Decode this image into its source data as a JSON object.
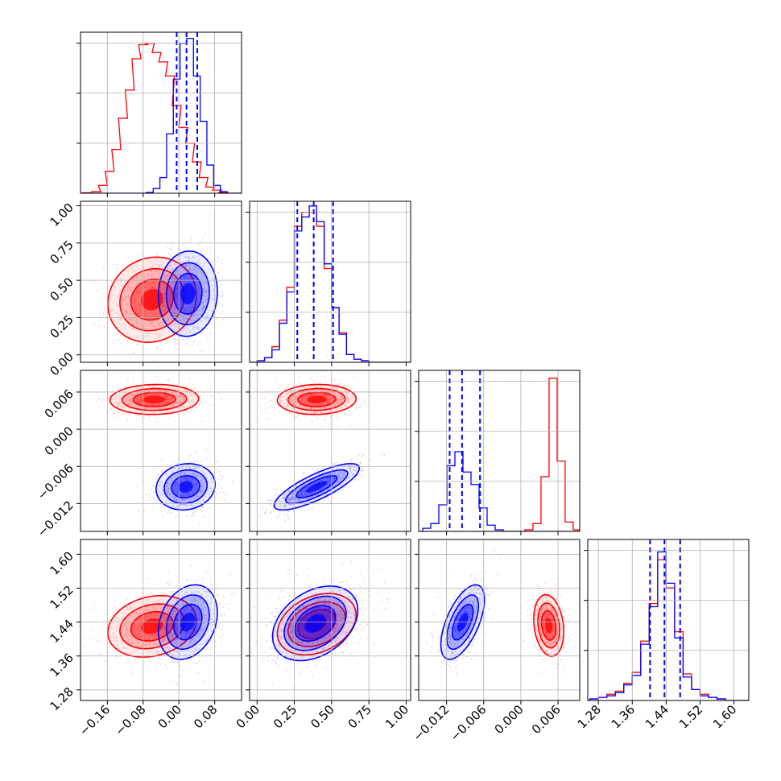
{
  "chart_data": {
    "type": "corner",
    "grid": true,
    "series": [
      {
        "key": "red",
        "color": "#ff0000"
      },
      {
        "key": "blue",
        "color": "#0000ff"
      }
    ],
    "quantile_line_color": "#0000ff",
    "params": [
      {
        "lim": [
          -0.22,
          0.14
        ],
        "ticks": [
          -0.16,
          -0.08,
          0.0,
          0.08
        ],
        "tick_labels": [
          "−0.16",
          "−0.08",
          "0.00",
          "0.08"
        ]
      },
      {
        "lim": [
          -0.05,
          1.03
        ],
        "ticks": [
          0.0,
          0.25,
          0.5,
          0.75,
          1.0
        ],
        "tick_labels": [
          "0.00",
          "0.25",
          "0.50",
          "0.75",
          "1.00"
        ]
      },
      {
        "lim": [
          -0.0165,
          0.0095
        ],
        "ticks": [
          -0.012,
          -0.006,
          0.0,
          0.006
        ],
        "tick_labels": [
          "−0.012",
          "−0.006",
          "0.000",
          "0.006"
        ]
      },
      {
        "lim": [
          1.255,
          1.635
        ],
        "ticks": [
          1.28,
          1.36,
          1.44,
          1.52,
          1.6
        ],
        "tick_labels": [
          "1.28",
          "1.36",
          "1.44",
          "1.52",
          "1.60"
        ]
      }
    ],
    "histograms": [
      {
        "quantiles": [
          -0.005,
          0.017,
          0.041
        ],
        "red": [
          {
            "x": -0.205,
            "y": 0.003
          },
          {
            "x": -0.185,
            "y": 0.01
          },
          {
            "x": -0.17,
            "y": 0.05
          },
          {
            "x": -0.155,
            "y": 0.14
          },
          {
            "x": -0.14,
            "y": 0.28
          },
          {
            "x": -0.125,
            "y": 0.48
          },
          {
            "x": -0.11,
            "y": 0.66
          },
          {
            "x": -0.095,
            "y": 0.86
          },
          {
            "x": -0.08,
            "y": 0.95
          },
          {
            "x": -0.065,
            "y": 0.96
          },
          {
            "x": -0.05,
            "y": 0.9
          },
          {
            "x": -0.035,
            "y": 0.84
          },
          {
            "x": -0.02,
            "y": 0.75
          },
          {
            "x": -0.005,
            "y": 0.56
          },
          {
            "x": 0.01,
            "y": 0.42
          },
          {
            "x": 0.025,
            "y": 0.32
          },
          {
            "x": 0.04,
            "y": 0.2
          },
          {
            "x": 0.055,
            "y": 0.1
          },
          {
            "x": 0.07,
            "y": 0.04
          },
          {
            "x": 0.085,
            "y": 0.02
          },
          {
            "x": 0.1,
            "y": 0.005
          }
        ],
        "blue": [
          {
            "x": -0.065,
            "y": 0.005
          },
          {
            "x": -0.05,
            "y": 0.03
          },
          {
            "x": -0.035,
            "y": 0.1
          },
          {
            "x": -0.02,
            "y": 0.38
          },
          {
            "x": -0.005,
            "y": 0.73
          },
          {
            "x": 0.01,
            "y": 0.96
          },
          {
            "x": 0.025,
            "y": 0.99
          },
          {
            "x": 0.04,
            "y": 0.75
          },
          {
            "x": 0.055,
            "y": 0.46
          },
          {
            "x": 0.07,
            "y": 0.18
          },
          {
            "x": 0.085,
            "y": 0.05
          },
          {
            "x": 0.1,
            "y": 0.01
          }
        ]
      },
      {
        "quantiles": [
          0.27,
          0.38,
          0.51
        ],
        "red": [
          {
            "x": 0.025,
            "y": 0.01
          },
          {
            "x": 0.075,
            "y": 0.03
          },
          {
            "x": 0.125,
            "y": 0.1
          },
          {
            "x": 0.175,
            "y": 0.27
          },
          {
            "x": 0.225,
            "y": 0.48
          },
          {
            "x": 0.275,
            "y": 0.87
          },
          {
            "x": 0.325,
            "y": 0.96
          },
          {
            "x": 0.375,
            "y": 0.96
          },
          {
            "x": 0.425,
            "y": 0.87
          },
          {
            "x": 0.475,
            "y": 0.6
          },
          {
            "x": 0.525,
            "y": 0.35
          },
          {
            "x": 0.575,
            "y": 0.19
          },
          {
            "x": 0.625,
            "y": 0.05
          },
          {
            "x": 0.675,
            "y": 0.02
          },
          {
            "x": 0.725,
            "y": 0.01
          }
        ],
        "blue": [
          {
            "x": 0.025,
            "y": 0.01
          },
          {
            "x": 0.075,
            "y": 0.03
          },
          {
            "x": 0.125,
            "y": 0.08
          },
          {
            "x": 0.175,
            "y": 0.25
          },
          {
            "x": 0.225,
            "y": 0.45
          },
          {
            "x": 0.275,
            "y": 0.84
          },
          {
            "x": 0.325,
            "y": 0.93
          },
          {
            "x": 0.375,
            "y": 1.0
          },
          {
            "x": 0.425,
            "y": 0.9
          },
          {
            "x": 0.475,
            "y": 0.63
          },
          {
            "x": 0.525,
            "y": 0.35
          },
          {
            "x": 0.575,
            "y": 0.18
          },
          {
            "x": 0.625,
            "y": 0.05
          },
          {
            "x": 0.675,
            "y": 0.02
          },
          {
            "x": 0.725,
            "y": 0.01
          }
        ]
      },
      {
        "quantiles": [
          -0.0115,
          -0.0095,
          -0.0066
        ],
        "red": [
          {
            "x": 0.0013,
            "y": 0.01
          },
          {
            "x": 0.0026,
            "y": 0.05
          },
          {
            "x": 0.0039,
            "y": 0.35
          },
          {
            "x": 0.0052,
            "y": 0.98
          },
          {
            "x": 0.0065,
            "y": 0.45
          },
          {
            "x": 0.0078,
            "y": 0.06
          },
          {
            "x": 0.0091,
            "y": 0.01
          }
        ],
        "blue": [
          {
            "x": -0.0152,
            "y": 0.02
          },
          {
            "x": -0.0139,
            "y": 0.05
          },
          {
            "x": -0.0126,
            "y": 0.17
          },
          {
            "x": -0.0113,
            "y": 0.42
          },
          {
            "x": -0.01,
            "y": 0.51
          },
          {
            "x": -0.0087,
            "y": 0.38
          },
          {
            "x": -0.0074,
            "y": 0.3
          },
          {
            "x": -0.0061,
            "y": 0.15
          },
          {
            "x": -0.0048,
            "y": 0.04
          },
          {
            "x": -0.0035,
            "y": 0.01
          }
        ]
      },
      {
        "quantiles": [
          1.402,
          1.436,
          1.473
        ],
        "red": [
          {
            "x": 1.27,
            "y": 0.01
          },
          {
            "x": 1.29,
            "y": 0.02
          },
          {
            "x": 1.31,
            "y": 0.04
          },
          {
            "x": 1.33,
            "y": 0.06
          },
          {
            "x": 1.35,
            "y": 0.11
          },
          {
            "x": 1.37,
            "y": 0.18
          },
          {
            "x": 1.39,
            "y": 0.38
          },
          {
            "x": 1.41,
            "y": 0.62
          },
          {
            "x": 1.43,
            "y": 0.9
          },
          {
            "x": 1.45,
            "y": 0.72
          },
          {
            "x": 1.47,
            "y": 0.44
          },
          {
            "x": 1.49,
            "y": 0.17
          },
          {
            "x": 1.51,
            "y": 0.07
          },
          {
            "x": 1.53,
            "y": 0.04
          },
          {
            "x": 1.55,
            "y": 0.02
          },
          {
            "x": 1.57,
            "y": 0.01
          }
        ],
        "blue": [
          {
            "x": 1.27,
            "y": 0.01
          },
          {
            "x": 1.29,
            "y": 0.02
          },
          {
            "x": 1.31,
            "y": 0.03
          },
          {
            "x": 1.33,
            "y": 0.05
          },
          {
            "x": 1.35,
            "y": 0.1
          },
          {
            "x": 1.37,
            "y": 0.16
          },
          {
            "x": 1.39,
            "y": 0.36
          },
          {
            "x": 1.41,
            "y": 0.6
          },
          {
            "x": 1.43,
            "y": 0.95
          },
          {
            "x": 1.45,
            "y": 0.75
          },
          {
            "x": 1.47,
            "y": 0.4
          },
          {
            "x": 1.49,
            "y": 0.15
          },
          {
            "x": 1.51,
            "y": 0.07
          },
          {
            "x": 1.53,
            "y": 0.03
          },
          {
            "x": 1.55,
            "y": 0.02
          },
          {
            "x": 1.57,
            "y": 0.01
          }
        ]
      }
    ],
    "pairs": [
      {
        "x_param": 0,
        "y_param": 1,
        "red": {
          "mean": [
            -0.06,
            0.37
          ],
          "sd": [
            0.045,
            0.13
          ],
          "corr": 0.1
        },
        "blue": {
          "mean": [
            0.02,
            0.41
          ],
          "sd": [
            0.03,
            0.13
          ],
          "corr": 0.05
        }
      },
      {
        "x_param": 0,
        "y_param": 2,
        "red": {
          "mean": [
            -0.055,
            0.0048
          ],
          "sd": [
            0.045,
            0.0011
          ],
          "corr": 0.05
        },
        "blue": {
          "mean": [
            0.015,
            -0.0093
          ],
          "sd": [
            0.03,
            0.0017
          ],
          "corr": 0.1
        }
      },
      {
        "x_param": 1,
        "y_param": 2,
        "red": {
          "mean": [
            0.4,
            0.0048
          ],
          "sd": [
            0.12,
            0.0011
          ],
          "corr": 0.05
        },
        "blue": {
          "mean": [
            0.4,
            -0.0093
          ],
          "sd": [
            0.13,
            0.0017
          ],
          "corr": 0.8
        }
      },
      {
        "x_param": 0,
        "y_param": 3,
        "red": {
          "mean": [
            -0.06,
            1.43
          ],
          "sd": [
            0.045,
            0.033
          ],
          "corr": 0.2
        },
        "blue": {
          "mean": [
            0.02,
            1.44
          ],
          "sd": [
            0.03,
            0.04
          ],
          "corr": 0.25
        }
      },
      {
        "x_param": 1,
        "y_param": 3,
        "red": {
          "mean": [
            0.4,
            1.435
          ],
          "sd": [
            0.12,
            0.033
          ],
          "corr": 0.3
        },
        "blue": {
          "mean": [
            0.39,
            1.437
          ],
          "sd": [
            0.13,
            0.04
          ],
          "corr": 0.35
        }
      },
      {
        "x_param": 2,
        "y_param": 3,
        "red": {
          "mean": [
            0.0045,
            1.432
          ],
          "sd": [
            0.0011,
            0.033
          ],
          "corr": -0.2
        },
        "blue": {
          "mean": [
            -0.0094,
            1.44
          ],
          "sd": [
            0.0016,
            0.04
          ],
          "corr": 0.6
        }
      }
    ]
  }
}
